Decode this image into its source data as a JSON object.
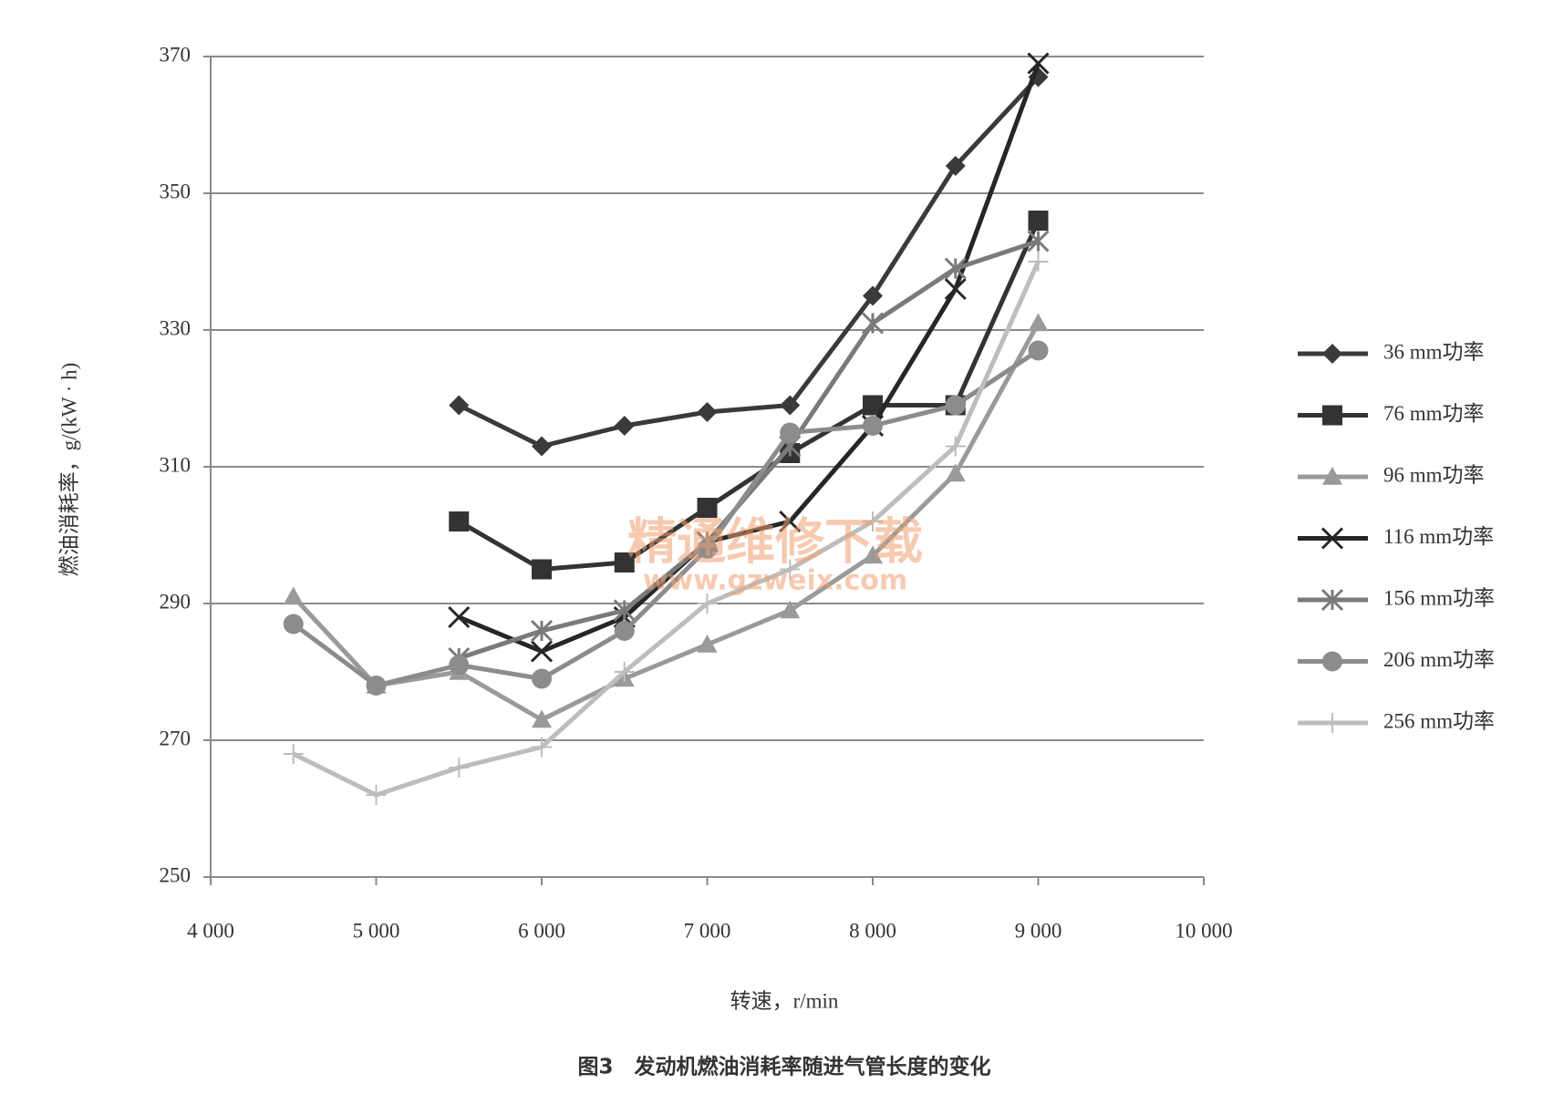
{
  "chart_data": {
    "type": "line",
    "x_label": "转速，r/min",
    "y_label": "燃油消耗率，g/(kW · h)",
    "caption": "图3　发动机燃油消耗率随进气管长度的变化",
    "watermark": [
      "精通维修下载",
      "www.gzweix.com"
    ],
    "x": [
      4500,
      5000,
      5500,
      6000,
      6500,
      7000,
      7500,
      8000,
      8500,
      9000
    ],
    "xlim": [
      4000,
      10000
    ],
    "xticks": [
      {
        "value": 4000,
        "label": "4 000"
      },
      {
        "value": 5000,
        "label": "5 000"
      },
      {
        "value": 6000,
        "label": "6 000"
      },
      {
        "value": 7000,
        "label": "7 000"
      },
      {
        "value": 8000,
        "label": "8 000"
      },
      {
        "value": 9000,
        "label": "9 000"
      },
      {
        "value": 10000,
        "label": "10 000"
      }
    ],
    "ylim": [
      250,
      370
    ],
    "yticks": [
      250,
      270,
      290,
      310,
      330,
      350,
      370
    ],
    "grid": true,
    "legend": "right",
    "series": [
      {
        "name": "36 mm功率",
        "color": "#3a3a3a",
        "marker": "diamond",
        "values": [
          null,
          null,
          319,
          313,
          316,
          318,
          319,
          335,
          354,
          367
        ]
      },
      {
        "name": "76 mm功率",
        "color": "#333333",
        "marker": "square",
        "values": [
          null,
          null,
          302,
          295,
          296,
          304,
          312,
          319,
          319,
          346
        ]
      },
      {
        "name": "96 mm功率",
        "color": "#9a9a9a",
        "marker": "triangle",
        "values": [
          291,
          278,
          280,
          273,
          279,
          284,
          289,
          297,
          309,
          331
        ]
      },
      {
        "name": "116 mm功率",
        "color": "#262626",
        "marker": "x",
        "values": [
          null,
          null,
          288,
          283,
          288,
          299,
          302,
          316,
          336,
          369
        ]
      },
      {
        "name": "156 mm功率",
        "color": "#7a7a7a",
        "marker": "star",
        "values": [
          null,
          null,
          282,
          286,
          289,
          299,
          313,
          331,
          339,
          343
        ]
      },
      {
        "name": "206 mm功率",
        "color": "#8c8c8c",
        "marker": "circle",
        "values": [
          287,
          278,
          281,
          279,
          286,
          298,
          315,
          316,
          319,
          327
        ]
      },
      {
        "name": "256 mm功率",
        "color": "#bdbdbd",
        "marker": "plus",
        "values": [
          268,
          262,
          266,
          269,
          280,
          290,
          295,
          302,
          313,
          340
        ]
      }
    ]
  }
}
